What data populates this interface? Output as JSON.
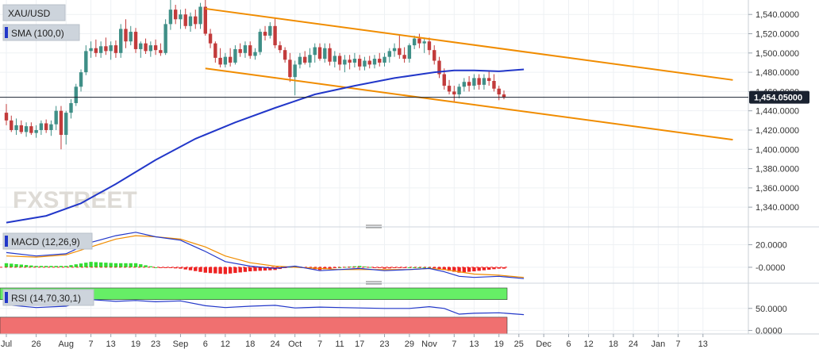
{
  "chart_data": {
    "type": "candlestick",
    "instrument": "XAU/USD",
    "indicator_labels": {
      "sma": "SMA (100,0)",
      "macd": "MACD (12,26,9)",
      "rsi": "RSI (14,70,30,1)"
    },
    "watermark": "FXSTREET",
    "last_price_label": "1,454.05000",
    "last_price": 1454.05,
    "price_ticks": [
      1340,
      1360,
      1380,
      1400,
      1420,
      1440,
      1460,
      1480,
      1500,
      1520,
      1540
    ],
    "price_tick_labels": [
      "1,340.0000",
      "1,360.0000",
      "1,380.0000",
      "1,400.0000",
      "1,420.0000",
      "1,440.0000",
      "1,460.0000",
      "1,480.0000",
      "1,500.0000",
      "1,520.0000",
      "1,540.0000"
    ],
    "ylim": [
      1322,
      1555
    ],
    "macd_ticks": [
      20,
      0
    ],
    "macd_tick_labels": [
      "20.0000",
      "-0.0000"
    ],
    "macd_ylim": [
      -12,
      33
    ],
    "rsi_ticks": [
      50,
      0
    ],
    "rsi_tick_labels": [
      "50.0000",
      "0.0000"
    ],
    "rsi_ylim": [
      -8,
      100
    ],
    "rsi_overbought": 70,
    "rsi_oversold": 30,
    "x_labels": [
      "Jul",
      "26",
      "Aug",
      "7",
      "13",
      "19",
      "23",
      "Sep",
      "6",
      "12",
      "18",
      "24",
      "Oct",
      "7",
      "11",
      "17",
      "23",
      "29",
      "Nov",
      "7",
      "13",
      "19",
      "25",
      "Dec",
      "6",
      "12",
      "18",
      "24",
      "Jan",
      "7",
      "13"
    ],
    "x_label_index": [
      0,
      6,
      12,
      17,
      21,
      26,
      30,
      35,
      40,
      44,
      49,
      54,
      58,
      63,
      67,
      71,
      76,
      81,
      85,
      90,
      94,
      99,
      103,
      108,
      113,
      117,
      122,
      126,
      131,
      135,
      140
    ],
    "num_slots": 142,
    "candles": [
      {
        "o": 1438,
        "h": 1447,
        "l": 1425,
        "c": 1430
      },
      {
        "o": 1430,
        "h": 1435,
        "l": 1418,
        "c": 1420
      },
      {
        "o": 1420,
        "h": 1432,
        "l": 1415,
        "c": 1425
      },
      {
        "o": 1425,
        "h": 1430,
        "l": 1416,
        "c": 1418
      },
      {
        "o": 1418,
        "h": 1428,
        "l": 1413,
        "c": 1424
      },
      {
        "o": 1424,
        "h": 1428,
        "l": 1415,
        "c": 1417
      },
      {
        "o": 1417,
        "h": 1425,
        "l": 1412,
        "c": 1420
      },
      {
        "o": 1420,
        "h": 1430,
        "l": 1415,
        "c": 1427
      },
      {
        "o": 1427,
        "h": 1431,
        "l": 1417,
        "c": 1420
      },
      {
        "o": 1420,
        "h": 1430,
        "l": 1414,
        "c": 1426
      },
      {
        "o": 1426,
        "h": 1445,
        "l": 1420,
        "c": 1440
      },
      {
        "o": 1440,
        "h": 1445,
        "l": 1400,
        "c": 1415
      },
      {
        "o": 1415,
        "h": 1440,
        "l": 1405,
        "c": 1438
      },
      {
        "o": 1438,
        "h": 1452,
        "l": 1432,
        "c": 1448
      },
      {
        "o": 1448,
        "h": 1468,
        "l": 1445,
        "c": 1465
      },
      {
        "o": 1465,
        "h": 1483,
        "l": 1460,
        "c": 1480
      },
      {
        "o": 1480,
        "h": 1508,
        "l": 1477,
        "c": 1502
      },
      {
        "o": 1502,
        "h": 1512,
        "l": 1495,
        "c": 1505
      },
      {
        "o": 1505,
        "h": 1514,
        "l": 1496,
        "c": 1500
      },
      {
        "o": 1500,
        "h": 1512,
        "l": 1495,
        "c": 1507
      },
      {
        "o": 1507,
        "h": 1516,
        "l": 1498,
        "c": 1502
      },
      {
        "o": 1502,
        "h": 1512,
        "l": 1493,
        "c": 1508
      },
      {
        "o": 1508,
        "h": 1513,
        "l": 1495,
        "c": 1500
      },
      {
        "o": 1500,
        "h": 1530,
        "l": 1495,
        "c": 1525
      },
      {
        "o": 1525,
        "h": 1535,
        "l": 1505,
        "c": 1512
      },
      {
        "o": 1512,
        "h": 1528,
        "l": 1508,
        "c": 1522
      },
      {
        "o": 1522,
        "h": 1526,
        "l": 1500,
        "c": 1504
      },
      {
        "o": 1504,
        "h": 1512,
        "l": 1495,
        "c": 1510
      },
      {
        "o": 1510,
        "h": 1515,
        "l": 1499,
        "c": 1502
      },
      {
        "o": 1502,
        "h": 1512,
        "l": 1496,
        "c": 1508
      },
      {
        "o": 1508,
        "h": 1514,
        "l": 1498,
        "c": 1503
      },
      {
        "o": 1503,
        "h": 1510,
        "l": 1497,
        "c": 1500
      },
      {
        "o": 1500,
        "h": 1535,
        "l": 1498,
        "c": 1530
      },
      {
        "o": 1530,
        "h": 1555,
        "l": 1524,
        "c": 1545
      },
      {
        "o": 1545,
        "h": 1550,
        "l": 1530,
        "c": 1535
      },
      {
        "o": 1535,
        "h": 1545,
        "l": 1525,
        "c": 1540
      },
      {
        "o": 1540,
        "h": 1546,
        "l": 1525,
        "c": 1528
      },
      {
        "o": 1528,
        "h": 1542,
        "l": 1522,
        "c": 1538
      },
      {
        "o": 1538,
        "h": 1545,
        "l": 1525,
        "c": 1530
      },
      {
        "o": 1530,
        "h": 1552,
        "l": 1525,
        "c": 1548
      },
      {
        "o": 1548,
        "h": 1555,
        "l": 1518,
        "c": 1520
      },
      {
        "o": 1520,
        "h": 1525,
        "l": 1505,
        "c": 1510
      },
      {
        "o": 1510,
        "h": 1512,
        "l": 1490,
        "c": 1495
      },
      {
        "o": 1495,
        "h": 1505,
        "l": 1485,
        "c": 1488
      },
      {
        "o": 1488,
        "h": 1500,
        "l": 1485,
        "c": 1496
      },
      {
        "o": 1496,
        "h": 1505,
        "l": 1486,
        "c": 1490
      },
      {
        "o": 1490,
        "h": 1508,
        "l": 1488,
        "c": 1504
      },
      {
        "o": 1504,
        "h": 1510,
        "l": 1496,
        "c": 1500
      },
      {
        "o": 1500,
        "h": 1512,
        "l": 1495,
        "c": 1508
      },
      {
        "o": 1508,
        "h": 1512,
        "l": 1494,
        "c": 1497
      },
      {
        "o": 1497,
        "h": 1505,
        "l": 1493,
        "c": 1501
      },
      {
        "o": 1501,
        "h": 1525,
        "l": 1498,
        "c": 1522
      },
      {
        "o": 1522,
        "h": 1528,
        "l": 1513,
        "c": 1518
      },
      {
        "o": 1518,
        "h": 1532,
        "l": 1515,
        "c": 1528
      },
      {
        "o": 1528,
        "h": 1536,
        "l": 1505,
        "c": 1508
      },
      {
        "o": 1508,
        "h": 1512,
        "l": 1500,
        "c": 1503
      },
      {
        "o": 1503,
        "h": 1506,
        "l": 1490,
        "c": 1493
      },
      {
        "o": 1493,
        "h": 1500,
        "l": 1470,
        "c": 1475
      },
      {
        "o": 1475,
        "h": 1492,
        "l": 1456,
        "c": 1488
      },
      {
        "o": 1488,
        "h": 1500,
        "l": 1484,
        "c": 1496
      },
      {
        "o": 1496,
        "h": 1502,
        "l": 1488,
        "c": 1490
      },
      {
        "o": 1490,
        "h": 1505,
        "l": 1485,
        "c": 1498
      },
      {
        "o": 1498,
        "h": 1510,
        "l": 1490,
        "c": 1506
      },
      {
        "o": 1506,
        "h": 1510,
        "l": 1492,
        "c": 1494
      },
      {
        "o": 1494,
        "h": 1510,
        "l": 1490,
        "c": 1505
      },
      {
        "o": 1505,
        "h": 1510,
        "l": 1487,
        "c": 1491
      },
      {
        "o": 1491,
        "h": 1502,
        "l": 1485,
        "c": 1497
      },
      {
        "o": 1497,
        "h": 1500,
        "l": 1482,
        "c": 1488
      },
      {
        "o": 1488,
        "h": 1498,
        "l": 1480,
        "c": 1493
      },
      {
        "o": 1493,
        "h": 1498,
        "l": 1483,
        "c": 1490
      },
      {
        "o": 1490,
        "h": 1500,
        "l": 1485,
        "c": 1494
      },
      {
        "o": 1494,
        "h": 1498,
        "l": 1482,
        "c": 1486
      },
      {
        "o": 1486,
        "h": 1496,
        "l": 1482,
        "c": 1492
      },
      {
        "o": 1492,
        "h": 1497,
        "l": 1484,
        "c": 1488
      },
      {
        "o": 1488,
        "h": 1498,
        "l": 1484,
        "c": 1494
      },
      {
        "o": 1494,
        "h": 1500,
        "l": 1486,
        "c": 1490
      },
      {
        "o": 1490,
        "h": 1500,
        "l": 1486,
        "c": 1496
      },
      {
        "o": 1496,
        "h": 1505,
        "l": 1490,
        "c": 1502
      },
      {
        "o": 1502,
        "h": 1510,
        "l": 1496,
        "c": 1505
      },
      {
        "o": 1505,
        "h": 1518,
        "l": 1494,
        "c": 1498
      },
      {
        "o": 1498,
        "h": 1506,
        "l": 1490,
        "c": 1494
      },
      {
        "o": 1494,
        "h": 1510,
        "l": 1490,
        "c": 1508
      },
      {
        "o": 1508,
        "h": 1518,
        "l": 1504,
        "c": 1515
      },
      {
        "o": 1515,
        "h": 1520,
        "l": 1505,
        "c": 1510
      },
      {
        "o": 1510,
        "h": 1516,
        "l": 1500,
        "c": 1512
      },
      {
        "o": 1512,
        "h": 1516,
        "l": 1498,
        "c": 1503
      },
      {
        "o": 1503,
        "h": 1508,
        "l": 1488,
        "c": 1492
      },
      {
        "o": 1492,
        "h": 1496,
        "l": 1474,
        "c": 1478
      },
      {
        "o": 1478,
        "h": 1484,
        "l": 1462,
        "c": 1466
      },
      {
        "o": 1466,
        "h": 1472,
        "l": 1457,
        "c": 1460
      },
      {
        "o": 1460,
        "h": 1466,
        "l": 1449,
        "c": 1457
      },
      {
        "o": 1457,
        "h": 1468,
        "l": 1453,
        "c": 1465
      },
      {
        "o": 1465,
        "h": 1474,
        "l": 1460,
        "c": 1470
      },
      {
        "o": 1470,
        "h": 1476,
        "l": 1460,
        "c": 1466
      },
      {
        "o": 1466,
        "h": 1478,
        "l": 1462,
        "c": 1474
      },
      {
        "o": 1474,
        "h": 1478,
        "l": 1462,
        "c": 1467
      },
      {
        "o": 1467,
        "h": 1478,
        "l": 1462,
        "c": 1474
      },
      {
        "o": 1474,
        "h": 1481,
        "l": 1466,
        "c": 1471
      },
      {
        "o": 1471,
        "h": 1478,
        "l": 1460,
        "c": 1463
      },
      {
        "o": 1463,
        "h": 1466,
        "l": 1451,
        "c": 1457
      },
      {
        "o": 1457,
        "h": 1461,
        "l": 1452,
        "c": 1454.05
      }
    ],
    "sma_x": [
      0,
      8,
      15,
      22,
      30,
      38,
      46,
      54,
      62,
      70,
      78,
      86,
      90,
      94,
      99,
      104
    ],
    "sma_y": [
      1324,
      1331,
      1344,
      1364,
      1389,
      1411,
      1428,
      1443,
      1457,
      1466,
      1474,
      1480,
      1482,
      1482,
      1481,
      1483
    ],
    "channel_upper": {
      "x": [
        40,
        146
      ],
      "y": [
        1546,
        1472
      ]
    },
    "channel_lower": {
      "x": [
        40,
        146
      ],
      "y": [
        1484,
        1410
      ]
    },
    "macd_x": [
      0,
      6,
      12,
      17,
      22,
      26,
      30,
      35,
      40,
      44,
      49,
      54,
      58,
      63,
      67,
      71,
      76,
      81,
      85,
      88,
      91,
      94,
      99,
      104
    ],
    "macd_line": [
      13,
      10,
      12,
      22,
      28,
      31,
      27,
      24,
      14,
      5,
      1,
      -1,
      1,
      -3,
      -2,
      -1,
      -3,
      -2,
      -1,
      -4,
      -8,
      -9,
      -8,
      -10
    ],
    "macd_signal": [
      10,
      9,
      11,
      18,
      25,
      28,
      27,
      25,
      18,
      10,
      4,
      1,
      0,
      -1,
      -2,
      -2,
      -2,
      -2,
      -1,
      -2,
      -4,
      -6,
      -7,
      -9
    ],
    "rsi_x": [
      0,
      6,
      12,
      17,
      22,
      26,
      30,
      35,
      40,
      44,
      49,
      54,
      58,
      63,
      67,
      71,
      76,
      81,
      85,
      88,
      91,
      94,
      99,
      104
    ],
    "rsi_values": [
      58,
      52,
      55,
      70,
      66,
      68,
      65,
      67,
      56,
      52,
      55,
      57,
      51,
      53,
      52,
      51,
      50,
      50,
      54,
      50,
      37,
      39,
      40,
      36
    ],
    "colors": {
      "bull": "#3f8f87",
      "bear": "#c23b3b",
      "sma": "#2237c9",
      "channel": "#f08c00",
      "macd_line": "#2237c9",
      "macd_signal": "#f08c00",
      "hist_pos": "#33dd33",
      "hist_neg": "#ee2222",
      "rsi_line": "#2237c9",
      "overbought_fill": "#66ee66",
      "oversold_fill": "#f07070",
      "price_label_bg": "#1a2230"
    }
  }
}
